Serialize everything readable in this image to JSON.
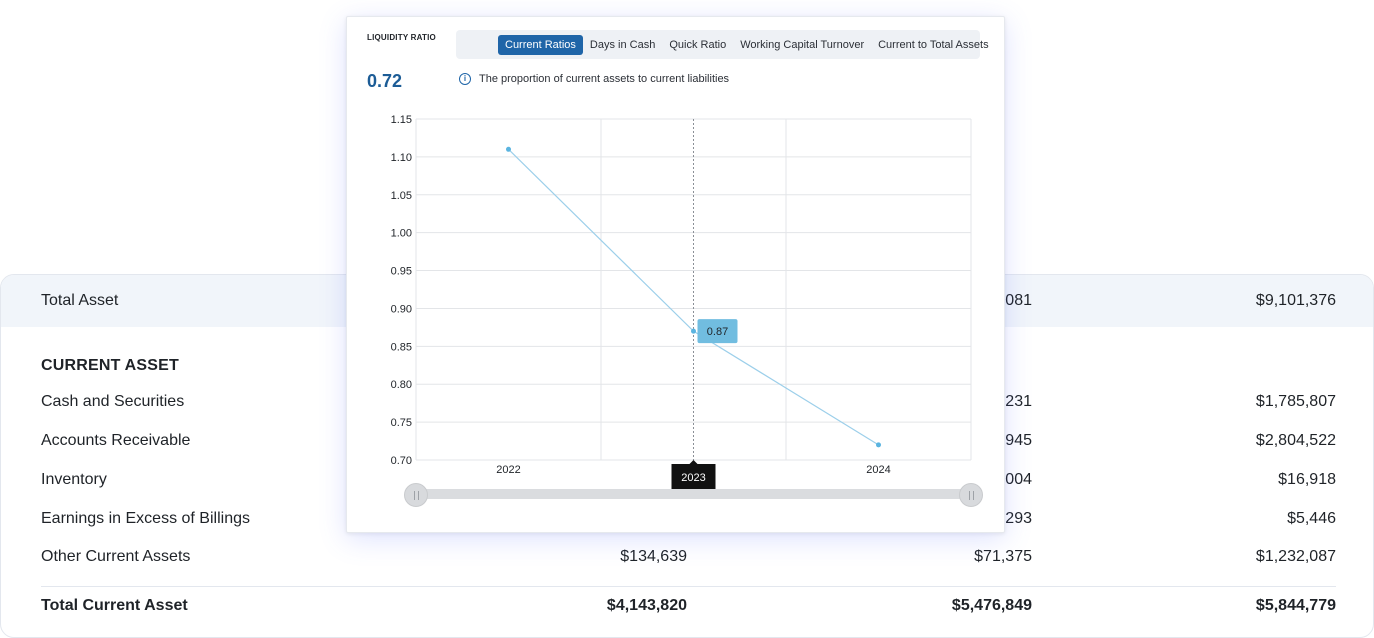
{
  "table": {
    "total_asset": {
      "label": "Total Asset",
      "col2": "081",
      "col3": "$9,101,376"
    },
    "section_title": "CURRENT ASSET",
    "rows": [
      {
        "label": "Cash and Securities",
        "col1": "",
        "col2": "231",
        "col3": "$1,785,807"
      },
      {
        "label": "Accounts Receivable",
        "col1": "",
        "col2": "945",
        "col3": "$2,804,522"
      },
      {
        "label": "Inventory",
        "col1": "",
        "col2": "004",
        "col3": "$16,918"
      },
      {
        "label": "Earnings in Excess of Billings",
        "col1": "",
        "col2": "293",
        "col3": "$5,446"
      },
      {
        "label": "Other Current Assets",
        "col1": "$134,639",
        "col2": "$71,375",
        "col3": "$1,232,087"
      }
    ],
    "total_row": {
      "label": "Total Current Asset",
      "col1": "$4,143,820",
      "col2": "$5,476,849",
      "col3": "$5,844,779"
    }
  },
  "panel": {
    "label": "LIQUIDITY RATIO",
    "value": "0.72",
    "tabs": [
      "Current Ratios",
      "Days in Cash",
      "Quick Ratio",
      "Working Capital Turnover",
      "Current to Total Assets"
    ],
    "active_tab": "Current Ratios",
    "info_icon": "info-circle-icon",
    "description": "The proportion of current assets to current liabilities",
    "tooltip_value": "0.87",
    "hover_label": "2023"
  },
  "colors": {
    "accent": "#1f65a8",
    "line": "#9ccfea",
    "point": "#5ab4e0",
    "tooltip_bg": "#71bde0",
    "hover_label_bg": "#111111"
  },
  "chart_data": {
    "type": "line",
    "x": [
      "2022",
      "2023",
      "2024"
    ],
    "series": [
      {
        "values": [
          1.11,
          0.87,
          0.72
        ]
      }
    ],
    "ylim": [
      0.7,
      1.15
    ],
    "yticks": [
      "1.15",
      "1.10",
      "1.05",
      "1.00",
      "0.95",
      "0.90",
      "0.85",
      "0.80",
      "0.75",
      "0.70"
    ],
    "grid": true,
    "hovered_index": 1
  }
}
